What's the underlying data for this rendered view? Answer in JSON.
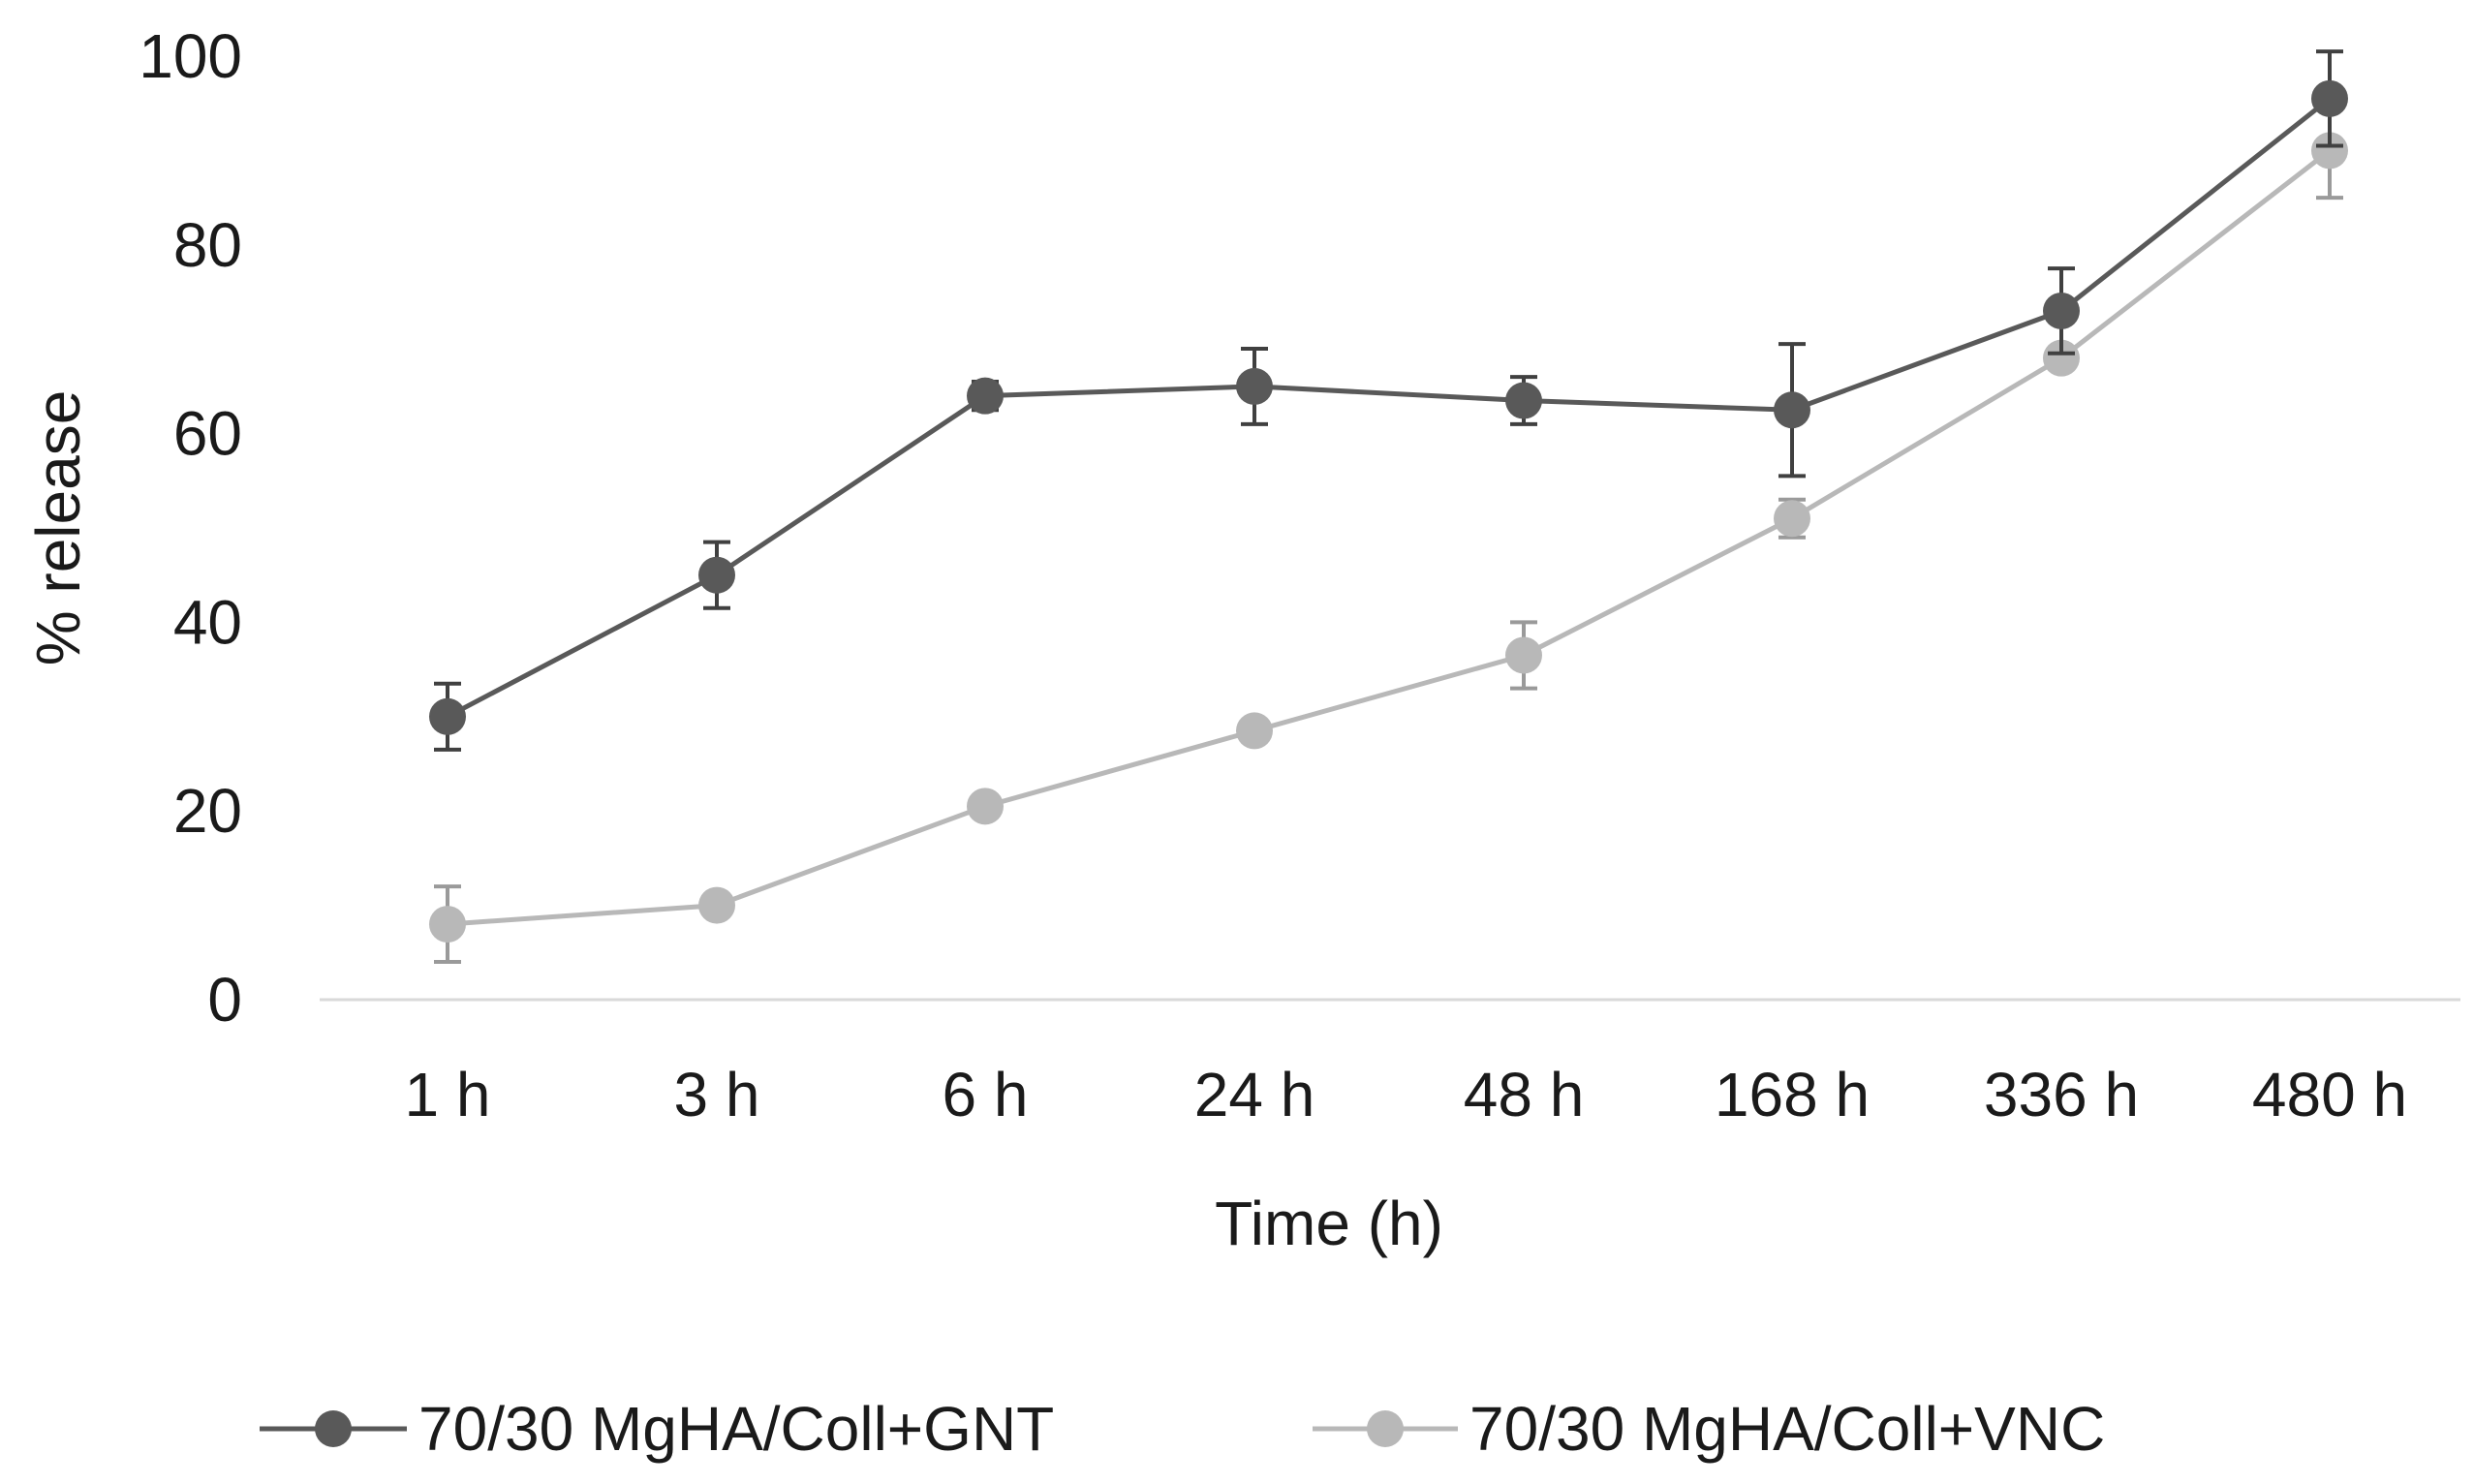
{
  "chart_data": {
    "type": "line",
    "title": "",
    "xlabel": "Time (h)",
    "ylabel": "% release",
    "ylim": [
      0,
      100
    ],
    "yticks": [
      0,
      20,
      40,
      60,
      80,
      100
    ],
    "grid": false,
    "legend_position": "bottom",
    "categories": [
      "1 h",
      "3 h",
      "6 h",
      "24 h",
      "48 h",
      "168 h",
      "336 h",
      "480 h"
    ],
    "series": [
      {
        "name": "70/30 MgHA/Coll+GNT",
        "color": "#595959",
        "values": [
          30,
          45,
          64,
          65,
          63.5,
          62.5,
          73,
          95.5
        ],
        "errors": [
          3.5,
          3.5,
          1.5,
          4,
          2.5,
          7,
          4.5,
          5
        ]
      },
      {
        "name": "70/30 MgHA/Coll+VNC",
        "color": "#b8b8b8",
        "values": [
          8,
          10,
          20.5,
          28.5,
          36.5,
          51,
          68,
          90
        ],
        "errors": [
          4,
          1,
          1,
          1,
          3.5,
          2,
          1,
          5
        ]
      }
    ]
  }
}
